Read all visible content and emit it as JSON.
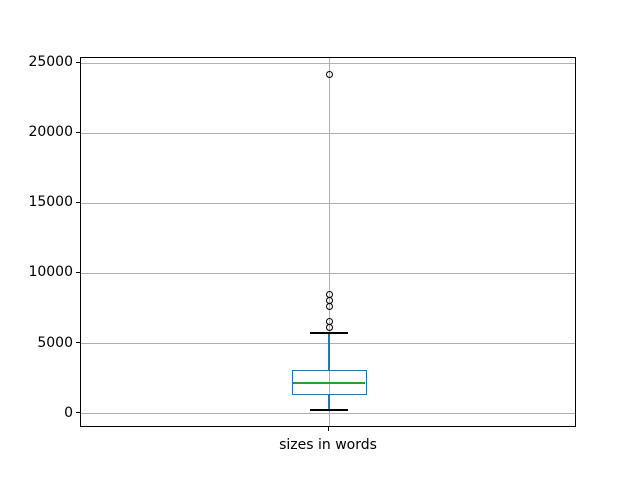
{
  "chart_data": {
    "type": "boxplot",
    "title": "",
    "xlabel": "",
    "ylabel": "",
    "categories": [
      "sizes in words"
    ],
    "series": [
      {
        "name": "sizes in words",
        "whisker_low": 250,
        "q1": 1300,
        "median": 2200,
        "q3": 3100,
        "whisker_high": 5740,
        "outliers": [
          6140,
          6570,
          7620,
          8050,
          8480,
          24200
        ]
      }
    ],
    "yticks": [
      0,
      5000,
      10000,
      15000,
      20000,
      25000
    ],
    "ytick_labels": [
      "0",
      "5000",
      "10000",
      "15000",
      "20000",
      "25000"
    ],
    "ylim": [
      -1020,
      25370
    ],
    "grid": true,
    "legend": false
  },
  "style": {
    "background": "#ffffff",
    "box_color": "#1f77b4",
    "whisker_color": "#1f77b4",
    "median_color": "#2ca02c",
    "cap_color": "#000000",
    "flier_color": "#000000",
    "grid_color": "#b0b0b0",
    "spine_color": "#000000",
    "text_color": "#000000"
  }
}
